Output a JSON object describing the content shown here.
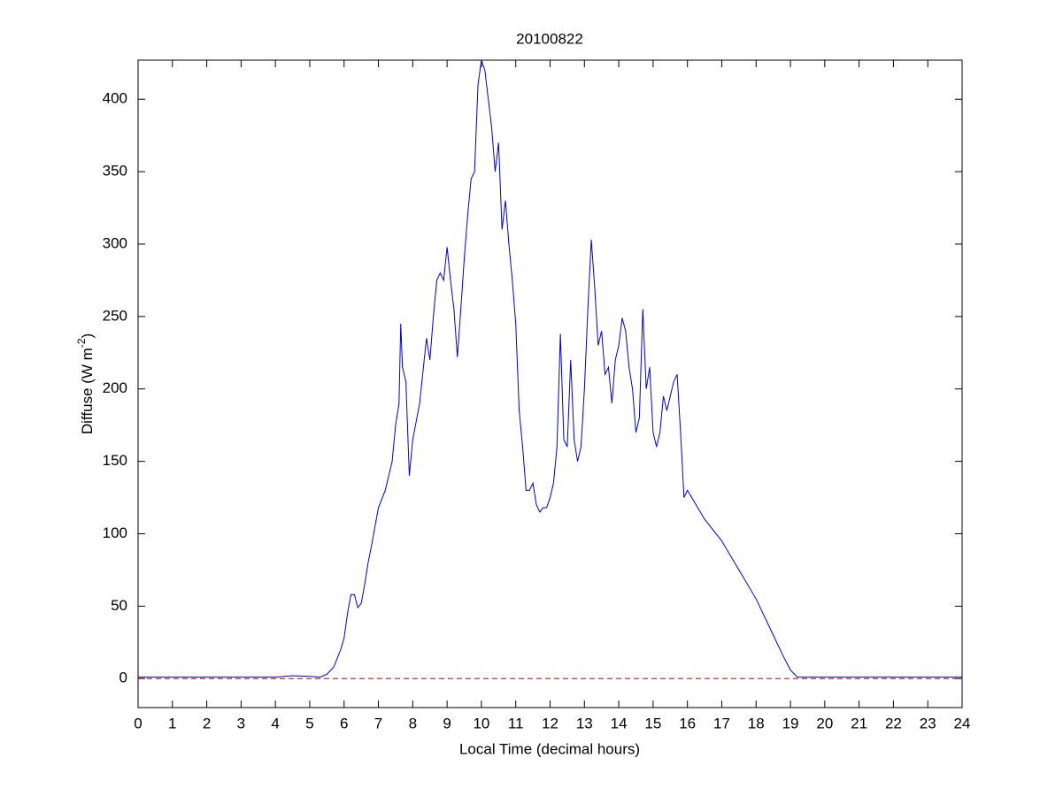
{
  "chart_data": {
    "type": "line",
    "title": "20100822",
    "xlabel": "Local Time (decimal hours)",
    "ylabel": [
      "Diffuse (W m",
      "-2",
      ")"
    ],
    "xlim": [
      0,
      24
    ],
    "ylim": [
      -20,
      427
    ],
    "xticks": [
      0,
      1,
      2,
      3,
      4,
      5,
      6,
      7,
      8,
      9,
      10,
      11,
      12,
      13,
      14,
      15,
      16,
      17,
      18,
      19,
      20,
      21,
      22,
      23,
      24
    ],
    "yticks": [
      0,
      50,
      100,
      150,
      200,
      250,
      300,
      350,
      400
    ],
    "reference_line": {
      "y": 0,
      "color": "#cc0000",
      "style": "dashed"
    },
    "series": [
      {
        "color": "#0000cc",
        "x": [
          0,
          1,
          2,
          3,
          4,
          4.5,
          5,
          5.3,
          5.5,
          5.7,
          5.9,
          6.0,
          6.1,
          6.2,
          6.3,
          6.4,
          6.5,
          6.6,
          6.7,
          6.8,
          6.9,
          7.0,
          7.2,
          7.4,
          7.5,
          7.6,
          7.65,
          7.7,
          7.8,
          7.9,
          8.0,
          8.2,
          8.4,
          8.5,
          8.6,
          8.7,
          8.8,
          8.9,
          9.0,
          9.1,
          9.2,
          9.3,
          9.4,
          9.5,
          9.6,
          9.7,
          9.8,
          9.9,
          10.0,
          10.1,
          10.2,
          10.3,
          10.4,
          10.5,
          10.6,
          10.7,
          10.8,
          10.9,
          11.0,
          11.1,
          11.2,
          11.3,
          11.4,
          11.5,
          11.6,
          11.7,
          11.8,
          11.9,
          12.0,
          12.1,
          12.2,
          12.3,
          12.4,
          12.5,
          12.6,
          12.7,
          12.8,
          12.9,
          13.0,
          13.1,
          13.2,
          13.3,
          13.4,
          13.5,
          13.6,
          13.7,
          13.8,
          13.9,
          14.0,
          14.1,
          14.2,
          14.3,
          14.4,
          14.5,
          14.6,
          14.7,
          14.8,
          14.9,
          15.0,
          15.1,
          15.2,
          15.3,
          15.4,
          15.5,
          15.6,
          15.7,
          15.8,
          15.9,
          16.0,
          16.5,
          17.0,
          17.5,
          18.0,
          18.5,
          18.8,
          19.0,
          19.2,
          20,
          24
        ],
        "values": [
          1,
          1,
          1,
          1,
          1,
          2,
          1.5,
          1,
          3,
          8,
          20,
          28,
          45,
          58,
          58,
          49,
          52,
          65,
          80,
          92,
          105,
          118,
          130,
          150,
          175,
          190,
          245,
          215,
          205,
          140,
          165,
          190,
          235,
          220,
          250,
          275,
          280,
          275,
          298,
          275,
          255,
          222,
          255,
          290,
          320,
          345,
          350,
          410,
          427,
          420,
          400,
          380,
          350,
          370,
          310,
          330,
          300,
          275,
          245,
          185,
          160,
          130,
          130,
          135,
          120,
          115,
          118,
          118,
          125,
          135,
          160,
          238,
          165,
          160,
          220,
          165,
          150,
          160,
          200,
          255,
          303,
          270,
          230,
          240,
          210,
          215,
          190,
          220,
          230,
          249,
          240,
          215,
          200,
          170,
          180,
          255,
          200,
          215,
          170,
          160,
          170,
          195,
          185,
          195,
          205,
          210,
          170,
          125,
          130,
          110,
          95,
          75,
          55,
          30,
          15,
          6,
          1,
          1,
          1
        ]
      }
    ]
  }
}
